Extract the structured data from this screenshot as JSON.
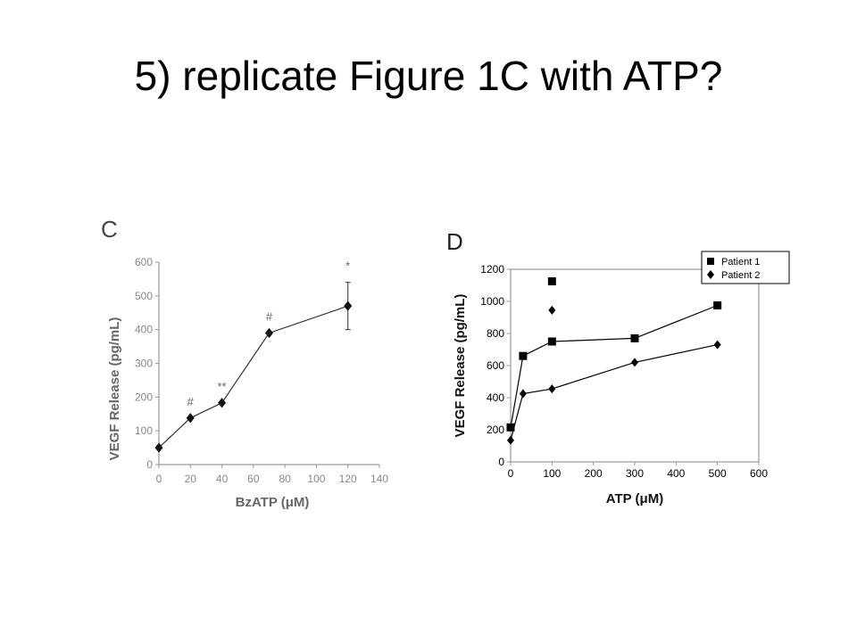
{
  "slide": {
    "title": "5) replicate Figure 1C with ATP?"
  },
  "chart_data": [
    {
      "type": "line",
      "panel_label": "C",
      "xlabel": "BzATP (μM)",
      "ylabel": "VEGF Release (pg/mL)",
      "xlim": [
        0,
        140
      ],
      "ylim": [
        0,
        600
      ],
      "xticks": [
        0,
        20,
        40,
        60,
        80,
        100,
        120,
        140
      ],
      "yticks": [
        0,
        100,
        200,
        300,
        400,
        500,
        600
      ],
      "grid": false,
      "colors": {
        "line": "#333333",
        "marker": "#111111",
        "axis": "#999999",
        "text": "#888888"
      },
      "series": [
        {
          "x": [
            0,
            20,
            40,
            70,
            120
          ],
          "values": [
            50,
            138,
            183,
            390,
            470
          ],
          "error": [
            0,
            0,
            0,
            0,
            70
          ],
          "marker": "diamond"
        }
      ],
      "annotations": [
        {
          "text": "#",
          "x": 20,
          "y": 138
        },
        {
          "text": "**",
          "x": 40,
          "y": 183
        },
        {
          "text": "#",
          "x": 70,
          "y": 390
        },
        {
          "text": "*",
          "x": 120,
          "y": 540
        }
      ]
    },
    {
      "type": "line",
      "panel_label": "D",
      "xlabel": "ATP (μM)",
      "ylabel": "VEGF Release (pg/mL)",
      "xlim": [
        0,
        600
      ],
      "ylim": [
        0,
        1200
      ],
      "xticks": [
        0,
        100,
        200,
        300,
        400,
        500,
        600
      ],
      "yticks": [
        0,
        200,
        400,
        600,
        800,
        1000,
        1200
      ],
      "grid": false,
      "legend_position": "top-right",
      "colors": {
        "line": "#000000",
        "marker": "#000000",
        "axis": "#999999",
        "text": "#000000"
      },
      "series": [
        {
          "name": "Patient 1",
          "marker": "square",
          "x": [
            0,
            30,
            100,
            300,
            500
          ],
          "values": [
            215,
            660,
            750,
            770,
            975
          ]
        },
        {
          "name": "Patient 2",
          "marker": "diamond",
          "x": [
            0,
            30,
            100,
            300,
            500
          ],
          "values": [
            135,
            425,
            455,
            620,
            730
          ]
        }
      ],
      "extra_points": [
        {
          "x": 100,
          "y": 1125,
          "marker": "square"
        },
        {
          "x": 100,
          "y": 945,
          "marker": "diamond"
        }
      ]
    }
  ]
}
